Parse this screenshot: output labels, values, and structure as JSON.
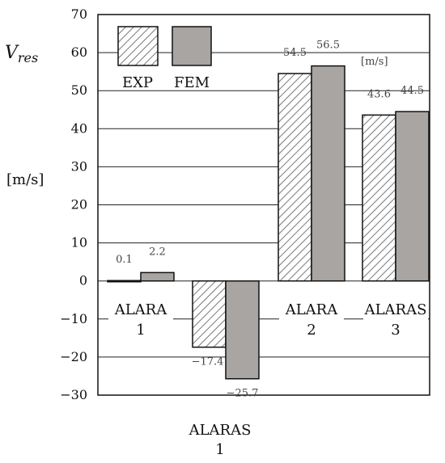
{
  "chart_data": {
    "type": "bar",
    "ylabel_main": "V",
    "ylabel_sub": "res",
    "yunit": "[m/s]",
    "ylim": [
      -30,
      70
    ],
    "yticks": [
      -30,
      -20,
      -10,
      0,
      10,
      20,
      30,
      40,
      50,
      60,
      70
    ],
    "grid": true,
    "legend_position": "top-left",
    "series": [
      {
        "name": "EXP",
        "pattern": "hatch",
        "values": [
          0.1,
          -17.4,
          54.5,
          43.6
        ],
        "labels": [
          "0.1",
          "−17.4",
          "54.5",
          "43.6"
        ]
      },
      {
        "name": "FEM",
        "pattern": "solid",
        "color": "#a9a5a3",
        "values": [
          2.2,
          -25.7,
          56.5,
          44.5
        ],
        "labels": [
          "2.2",
          "−25.7",
          "56.5",
          "44.5"
        ]
      }
    ],
    "categories": [
      {
        "line1": "ALARA",
        "line2": "1"
      },
      {
        "line1": "ALARAS",
        "line2": "1"
      },
      {
        "line1": "ALARA",
        "line2": "2"
      },
      {
        "line1": "ALARAS",
        "line2": "3"
      }
    ],
    "annotation": "[m/s]"
  }
}
